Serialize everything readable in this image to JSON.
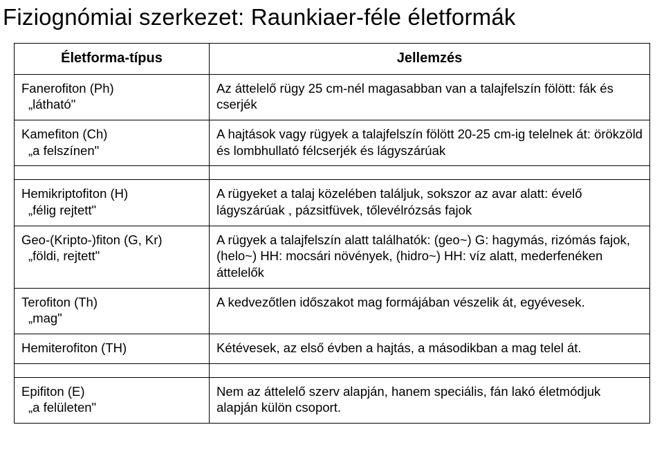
{
  "title": "Fiziognómiai szerkezet: Raunkiaer-féle életformák",
  "headers": {
    "type": "Életforma-típus",
    "desc": "Jellemzés"
  },
  "rows": [
    {
      "name": "Fanerofiton (Ph)",
      "nick": "„látható\"",
      "desc": "Az áttelelő rügy 25 cm-nél magasabban van a talajfelszín fölött: fák és cserjék"
    },
    {
      "name": "Kamefiton (Ch)",
      "nick": "„a felszínen\"",
      "desc": "A hajtások vagy rügyek a talajfelszín fölött 20-25 cm-ig telelnek át: örökzöld és lombhullató félcserjék és lágyszárúak"
    },
    {
      "name": "Hemikriptofiton (H)",
      "nick": "„félig rejtett\"",
      "desc": "A rügyeket a talaj közelében találjuk, sokszor az avar alatt: évelő lágyszárúak , pázsitfüvek, tőlevélrózsás fajok"
    },
    {
      "name": "Geo-(Kripto-)fiton (G, Kr)",
      "nick": "„földi, rejtett\"",
      "desc": "A rügyek a talajfelszín alatt találhatók: (geo~) G: hagymás, rizómás fajok, (helo~) HH: mocsári növények, (hidro~) HH: víz alatt, mederfenéken áttelelők"
    },
    {
      "name": "Terofiton (Th)",
      "nick": "„mag\"",
      "desc": "A kedvezőtlen időszakot mag formájában vészelik át, egyévesek."
    },
    {
      "name": "Hemiterofiton (TH)",
      "nick": "",
      "desc": "Kétévesek, az első évben a hajtás, a másodikban a mag telel át."
    },
    {
      "name": "Epifiton (E)",
      "nick": "„a felületen\"",
      "desc": "Nem az áttelelő szerv alapján, hanem speciális, fán lakó életmódjuk alapján külön csoport."
    }
  ],
  "spacer_after": [
    1,
    5
  ],
  "colors": {
    "border": "#000000",
    "text": "#000000",
    "bg": "#ffffff"
  },
  "fonts": {
    "title_size": 33,
    "header_size": 20,
    "cell_size": 18.5
  }
}
